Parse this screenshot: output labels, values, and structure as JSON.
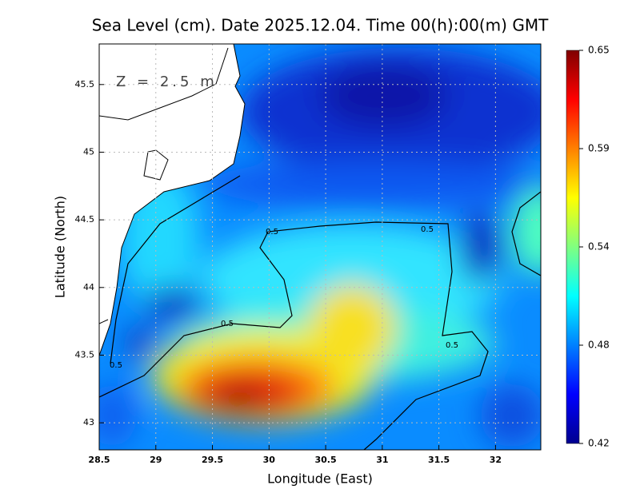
{
  "chart_data": {
    "type": "map",
    "title": "Sea Level (cm). Date 2025.12.04. Time 00(h):00(m) GMT",
    "x_label": "Longitude (East)",
    "y_label": "Latitude (North)",
    "annotation": "Z = 2.5 m",
    "xlim": [
      28.5,
      32.4
    ],
    "xticks": [
      28.5,
      29,
      29.5,
      30,
      30.5,
      31,
      31.5,
      32
    ],
    "ylim": [
      42.8,
      45.8
    ],
    "yticks": [
      43,
      43.5,
      44,
      44.5,
      45,
      45.5
    ],
    "grid": true,
    "colorbar_lim": [
      0.42,
      0.65
    ],
    "colorbar_ticks": [
      0.42,
      {
        "value": 0.4775,
        "label": "0.48"
      },
      {
        "value": 0.535,
        "label": "0.54"
      },
      {
        "value": 0.5925,
        "label": "0.59"
      },
      0.65
    ],
    "colormap": [
      "#00008f",
      "#0000ff",
      "#0080ff",
      "#00ffff",
      "#80ff80",
      "#ffff00",
      "#ff8000",
      "#ff0000",
      "#800000"
    ],
    "contour_labels": [
      0.5,
      0.5,
      0.5,
      0.5
    ]
  }
}
